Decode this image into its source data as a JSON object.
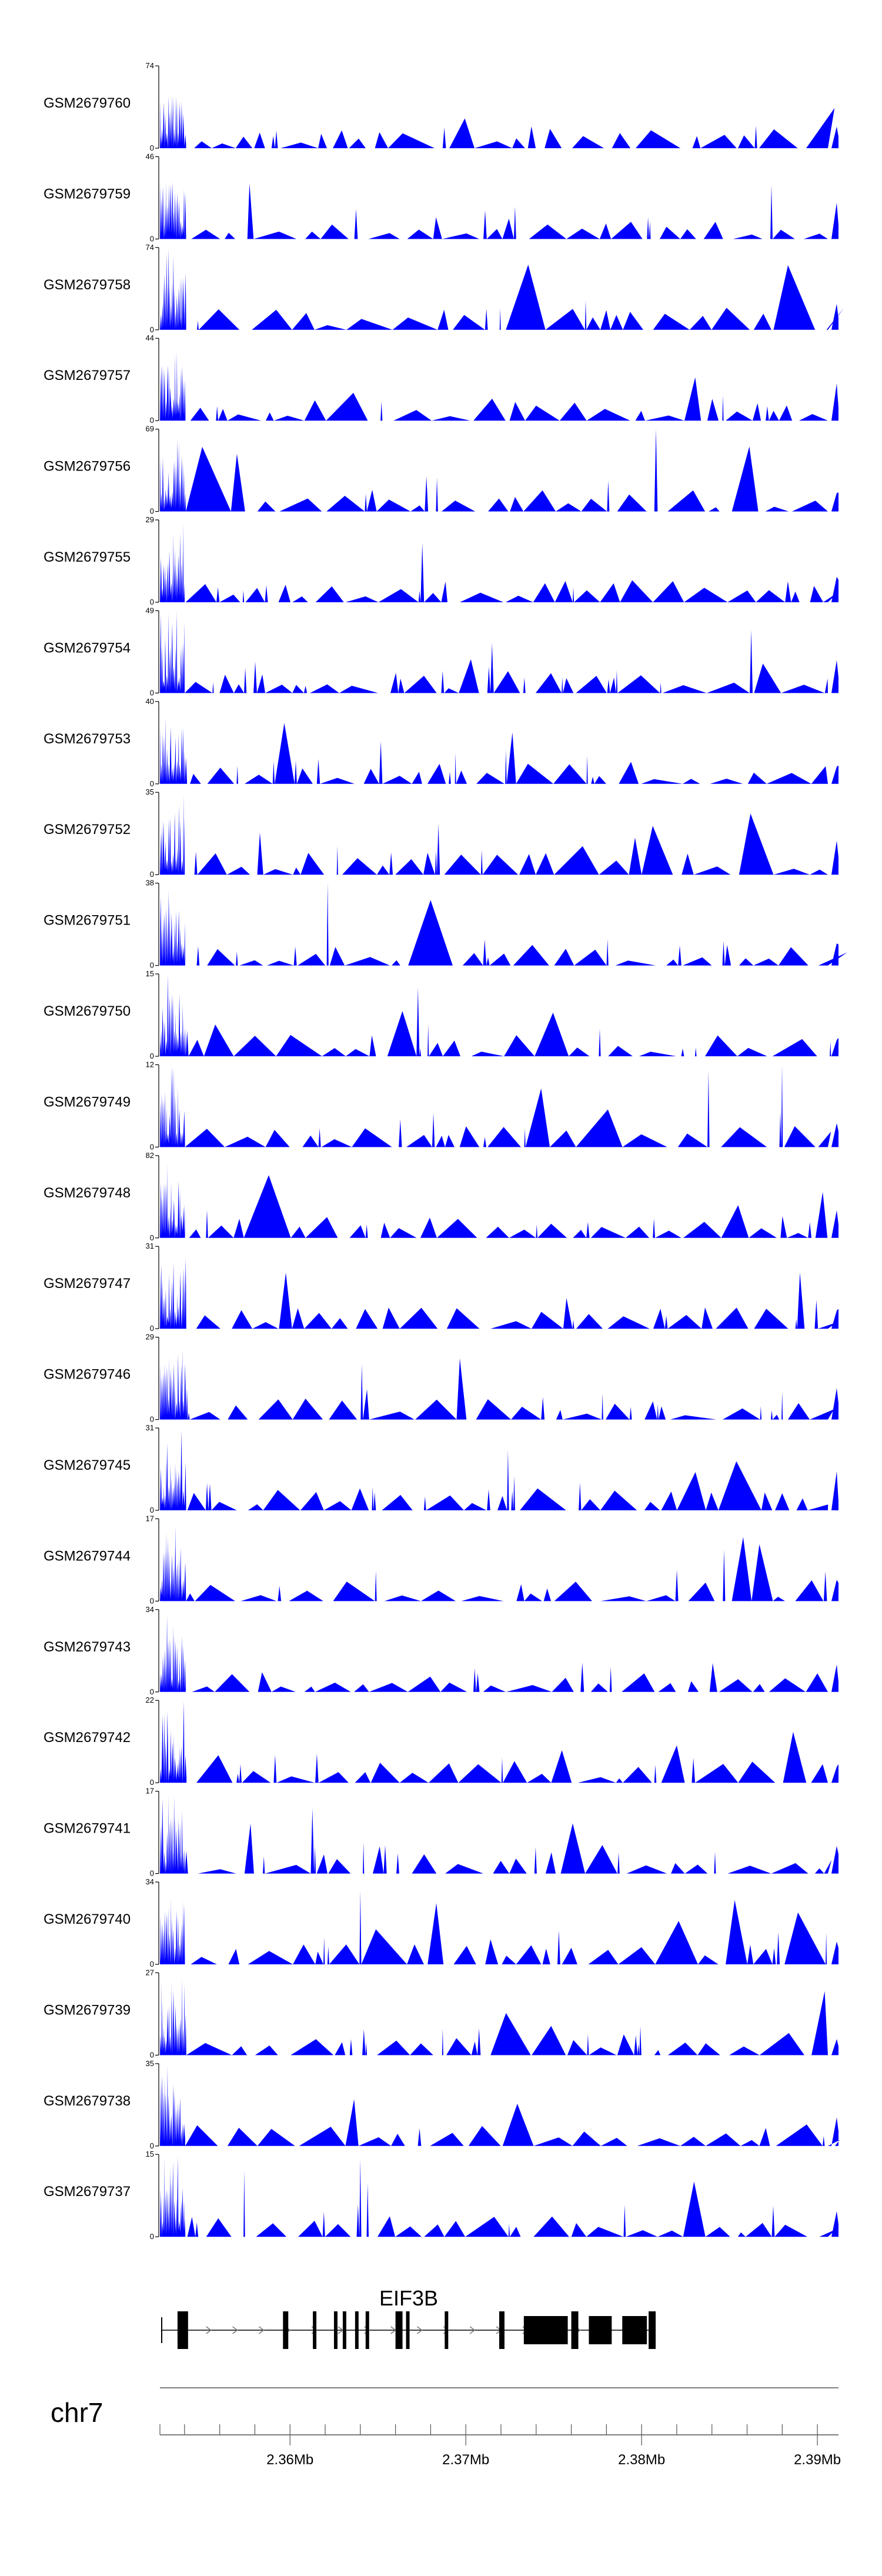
{
  "chart_data": {
    "type": "area",
    "title": "",
    "fill_color": "#0000ff",
    "x_unit": "bp",
    "xlim": [
      2352600,
      2391200
    ],
    "tracks": [
      {
        "name": "GSM2679760",
        "ylim": [
          0,
          74
        ]
      },
      {
        "name": "GSM2679759",
        "ylim": [
          0,
          46
        ]
      },
      {
        "name": "GSM2679758",
        "ylim": [
          0,
          74
        ]
      },
      {
        "name": "GSM2679757",
        "ylim": [
          0,
          44
        ]
      },
      {
        "name": "GSM2679756",
        "ylim": [
          0,
          69
        ]
      },
      {
        "name": "GSM2679755",
        "ylim": [
          0,
          29
        ]
      },
      {
        "name": "GSM2679754",
        "ylim": [
          0,
          49
        ]
      },
      {
        "name": "GSM2679753",
        "ylim": [
          0,
          40
        ]
      },
      {
        "name": "GSM2679752",
        "ylim": [
          0,
          35
        ]
      },
      {
        "name": "GSM2679751",
        "ylim": [
          0,
          38
        ]
      },
      {
        "name": "GSM2679750",
        "ylim": [
          0,
          15
        ]
      },
      {
        "name": "GSM2679749",
        "ylim": [
          0,
          12
        ]
      },
      {
        "name": "GSM2679748",
        "ylim": [
          0,
          82
        ]
      },
      {
        "name": "GSM2679747",
        "ylim": [
          0,
          31
        ]
      },
      {
        "name": "GSM2679746",
        "ylim": [
          0,
          29
        ]
      },
      {
        "name": "GSM2679745",
        "ylim": [
          0,
          31
        ]
      },
      {
        "name": "GSM2679744",
        "ylim": [
          0,
          17
        ]
      },
      {
        "name": "GSM2679743",
        "ylim": [
          0,
          34
        ]
      },
      {
        "name": "GSM2679742",
        "ylim": [
          0,
          22
        ]
      },
      {
        "name": "GSM2679741",
        "ylim": [
          0,
          17
        ]
      },
      {
        "name": "GSM2679740",
        "ylim": [
          0,
          34
        ]
      },
      {
        "name": "GSM2679739",
        "ylim": [
          0,
          27
        ]
      },
      {
        "name": "GSM2679738",
        "ylim": [
          0,
          35
        ]
      },
      {
        "name": "GSM2679737",
        "ylim": [
          0,
          15
        ]
      }
    ],
    "gene": {
      "name": "EIF3B",
      "strand": "+",
      "start": 2352700,
      "end": 2380800,
      "exons": [
        [
          2353600,
          2354200
        ],
        [
          2359600,
          2359900
        ],
        [
          2361300,
          2361500
        ],
        [
          2362500,
          2362700
        ],
        [
          2363000,
          2363200
        ],
        [
          2363700,
          2363900
        ],
        [
          2364300,
          2364500
        ],
        [
          2366000,
          2366400
        ],
        [
          2366600,
          2366800
        ],
        [
          2368800,
          2369000
        ],
        [
          2371900,
          2372200
        ],
        [
          2373300,
          2375800
        ],
        [
          2376000,
          2376400
        ],
        [
          2377000,
          2378300
        ],
        [
          2378900,
          2380300
        ],
        [
          2380400,
          2380800
        ]
      ]
    },
    "axis": {
      "chromosome": "chr7",
      "tick_labels": [
        {
          "value": 2360000,
          "label": "2.36Mb"
        },
        {
          "value": 2370000,
          "label": "2.37Mb"
        },
        {
          "value": 2380000,
          "label": "2.38Mb"
        },
        {
          "value": 2390000,
          "label": "2.39Mb"
        }
      ],
      "minor_tick_step": 2000
    }
  }
}
